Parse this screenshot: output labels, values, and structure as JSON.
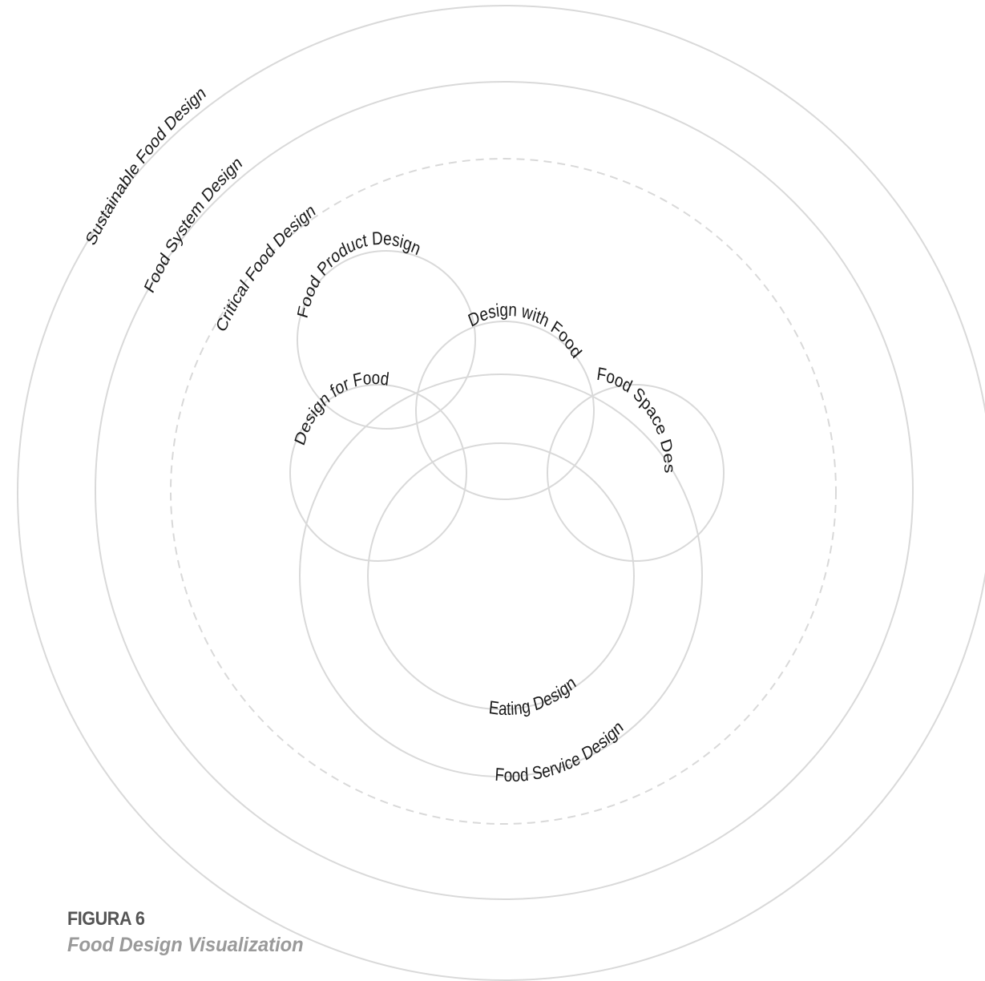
{
  "diagram": {
    "rings": [
      {
        "id": "sustainable",
        "label": "Sustainable Food Design"
      },
      {
        "id": "food-system",
        "label": "Food System Design"
      },
      {
        "id": "critical",
        "label": "Critical Food Design"
      },
      {
        "id": "food-product",
        "label": "Food Product Design"
      },
      {
        "id": "design-with",
        "label": "Design with Food"
      },
      {
        "id": "design-for",
        "label": "Design for Food"
      },
      {
        "id": "food-space",
        "label": "Food Space Design"
      },
      {
        "id": "eating",
        "label": "Eating Design"
      },
      {
        "id": "food-service",
        "label": "Food Service Design"
      }
    ]
  },
  "caption": {
    "figure_number": "FIGURA 6",
    "title": "Food Design Visualization"
  }
}
